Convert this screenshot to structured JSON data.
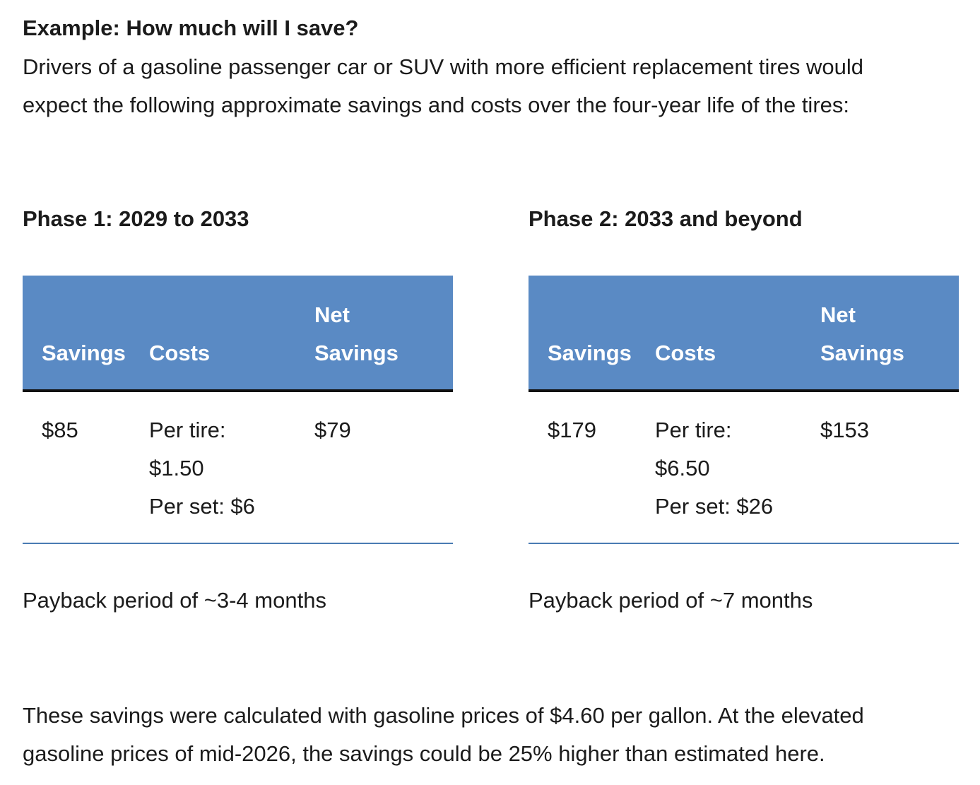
{
  "heading": "Example: How much will I save?",
  "intro": {
    "line1": "Drivers of a gasoline passenger car or SUV with more efficient replacement tires would",
    "line2": "expect the following approximate savings and costs over the four-year life of the tires:"
  },
  "phases": [
    {
      "title": "Phase 1: 2029 to 2033",
      "headers": {
        "savings": "Savings",
        "costs": "Costs",
        "net_line1": "Net",
        "net_line2": "Savings"
      },
      "row": {
        "savings": "$85",
        "costs_line1": "Per tire:",
        "costs_line2": "$1.50",
        "costs_line3": "Per set: $6",
        "net": "$79"
      },
      "payback": "Payback period of ~3-4 months"
    },
    {
      "title": "Phase 2: 2033 and beyond",
      "headers": {
        "savings": "Savings",
        "costs": "Costs",
        "net_line1": "Net",
        "net_line2": "Savings"
      },
      "row": {
        "savings": "$179",
        "costs_line1": "Per tire:",
        "costs_line2": "$6.50",
        "costs_line3": "Per set: $26",
        "net": "$153"
      },
      "payback": "Payback period of ~7 months"
    }
  ],
  "footnote": {
    "line1": "These savings were calculated with gasoline prices of $4.60 per gallon. At the elevated",
    "line2": "gasoline prices of mid-2026, the savings could be 25% higher than estimated here."
  },
  "colors": {
    "header_fill": "#5a8ac4",
    "header_text": "#ffffff",
    "rule_color": "#4a7cb3"
  }
}
